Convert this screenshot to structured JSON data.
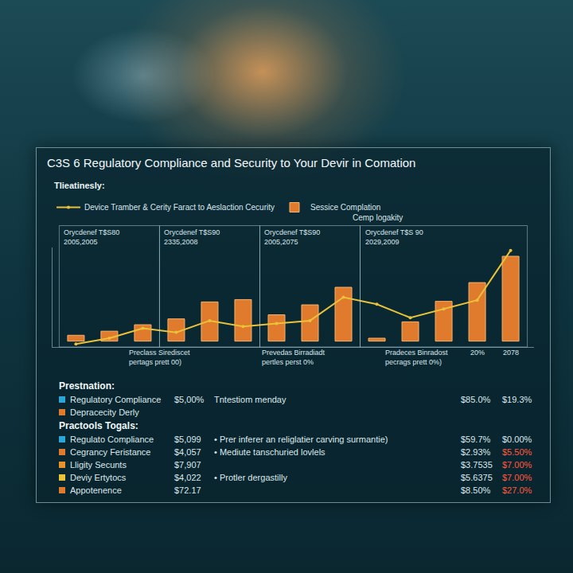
{
  "chart_data": {
    "type": "bar",
    "title": "C3S 6 Regulatory Compliance and Security to Your Devir in Comation",
    "subtitle": "Tlieatinesly:",
    "categories": [
      null,
      null,
      null,
      null,
      null,
      null,
      null,
      null,
      null,
      null,
      null,
      null,
      null,
      null
    ],
    "series": [
      {
        "name": "Sessice Complation",
        "type": "bar",
        "color": "#e07a2c",
        "values": [
          10,
          17,
          28,
          38,
          67,
          71,
          45,
          62,
          92,
          5,
          33,
          68,
          100,
          145
        ]
      },
      {
        "name": "Device Tramber & Cerity Faract to Aeslaction Cecurity",
        "type": "line",
        "color": "#e9c23a",
        "marker": "circle",
        "values": [
          -5,
          5,
          22,
          15,
          35,
          25,
          30,
          35,
          75,
          63,
          40,
          55,
          70,
          155
        ]
      }
    ],
    "ylim": [
      -10,
      160
    ],
    "yticks": [],
    "tick_labels": false,
    "grid": false,
    "legend": "top-left",
    "annotations": [
      "Cemp logakity",
      "Orycdenef T$S80\n2005,2005",
      "Orycdenef T$S90\n2335,2008",
      "Orycdenef T$S90\n2005,2075",
      "Orycdenef T$S 90\n2029,2009",
      "Preclass Sirediscet\npertags prett 00)",
      "Prevedas Birradiadt\npertles perst 0%",
      "Pradeces Binradost\npecrags prett 0%)",
      "20%",
      "2078"
    ]
  },
  "summary": {
    "legend_title": "Prestnation:",
    "legend": [
      {
        "label": "Regulatory Compliance",
        "color": "#2aa7d6",
        "value": "$5,00%",
        "note": "Tntestiom menday",
        "cells": [
          "$85.0%",
          "$19.3%"
        ]
      },
      {
        "label": "Depracecity Derly",
        "color": "#e07a2c"
      }
    ],
    "table_title": "Practools Togals:",
    "rows": [
      {
        "label": "Regulato Compliance",
        "color": "#2aa7d6",
        "amount": "$5,099",
        "note": "• Prer inferer an religlatier carving surmantie)",
        "cells": [
          "$59.7%",
          "$0.00%"
        ],
        "colors": [
          "#dbe8ec",
          "#dbe8ec"
        ]
      },
      {
        "label": "Cegrancy Feristance",
        "color": "#e07a2c",
        "amount": "$4,057",
        "note": "• Mediute tanschuried lovlels",
        "cells": [
          "$2.93%",
          "$5.50%"
        ],
        "colors": [
          "#dbe8ec",
          "#ff5a3c"
        ]
      },
      {
        "label": "Lligity Secunts",
        "color": "#e8902c",
        "amount": "$7,907",
        "cells": [
          "$3.7535",
          "$7.00%"
        ],
        "colors": [
          "#dbe8ec",
          "#ff5a3c"
        ]
      },
      {
        "label": "Deviy Ertytocs",
        "color": "#e9c23a",
        "amount": "$4,022",
        "note": "• Protler dergastilly",
        "cells": [
          "$5.6375",
          "$7.00%"
        ],
        "colors": [
          "#dbe8ec",
          "#ff5a3c"
        ]
      },
      {
        "label": "Appotenence",
        "color": "#e07a2c",
        "amount": "$72.17",
        "cells": [
          "$8.50%",
          "$27.0%"
        ],
        "colors": [
          "#dbe8ec",
          "#ff5a3c"
        ]
      }
    ]
  }
}
